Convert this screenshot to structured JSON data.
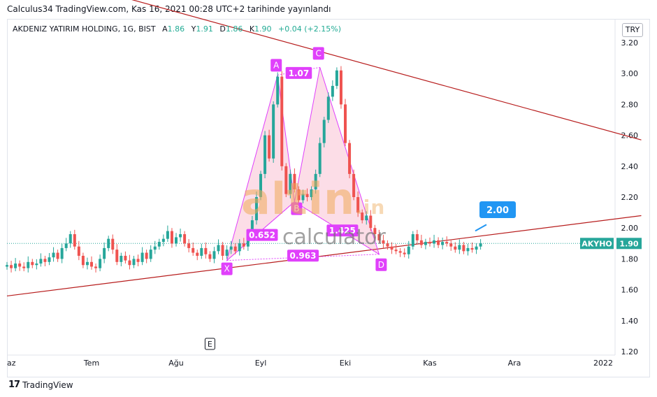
{
  "header": {
    "published": "Calculus34 TradingView.com, Kas 16, 2021 00:28 UTC+2 tarihinde yayınlandı"
  },
  "legend": {
    "symbol": "AKDENIZ YATIRIM HOLDING, 1G, BIST",
    "open_label": "A",
    "open": "1.86",
    "high_label": "Y",
    "high": "1.91",
    "low_label": "D",
    "low": "1.86",
    "close_label": "K",
    "close": "1.90",
    "change": "+0.04 (+2.15%)"
  },
  "currency": "TRY",
  "footer": {
    "brand": "TradingView"
  },
  "watermark": {
    "main": "altin",
    "suffix": ".in",
    "sub": "calculator"
  },
  "chart_data": {
    "type": "candlestick",
    "y_ticks": [
      "3.20",
      "3.00",
      "2.80",
      "2.60",
      "2.40",
      "2.20",
      "2.00",
      "1.80",
      "1.60",
      "1.40",
      "1.20"
    ],
    "ylim": [
      1.2,
      3.2
    ],
    "x_ticks": [
      {
        "label": "az",
        "idx": 0
      },
      {
        "label": "Tem",
        "idx": 20
      },
      {
        "label": "Ağu",
        "idx": 40
      },
      {
        "label": "Eyl",
        "idx": 60
      },
      {
        "label": "Eki",
        "idx": 80
      },
      {
        "label": "Kas",
        "idx": 100
      },
      {
        "label": "Ara",
        "idx": 120
      },
      {
        "label": "2022",
        "idx": 141
      }
    ],
    "closes": [
      1.76,
      1.74,
      1.77,
      1.75,
      1.74,
      1.78,
      1.76,
      1.77,
      1.8,
      1.78,
      1.81,
      1.84,
      1.8,
      1.87,
      1.9,
      1.96,
      1.88,
      1.82,
      1.76,
      1.78,
      1.75,
      1.74,
      1.8,
      1.87,
      1.93,
      1.86,
      1.78,
      1.82,
      1.79,
      1.76,
      1.8,
      1.78,
      1.84,
      1.8,
      1.86,
      1.88,
      1.91,
      1.93,
      1.98,
      1.9,
      1.94,
      1.96,
      1.9,
      1.87,
      1.84,
      1.82,
      1.87,
      1.83,
      1.8,
      1.85,
      1.89,
      1.82,
      1.86,
      1.88,
      1.85,
      1.9,
      1.88,
      1.94,
      2.05,
      2.2,
      2.35,
      2.6,
      2.45,
      2.8,
      2.98,
      2.4,
      2.22,
      2.35,
      2.25,
      2.18,
      2.22,
      2.2,
      2.25,
      2.35,
      2.55,
      2.7,
      2.85,
      2.92,
      3.02,
      2.8,
      2.55,
      2.35,
      2.2,
      2.1,
      2.05,
      2.08,
      2.0,
      1.96,
      1.92,
      1.9,
      1.88,
      1.86,
      1.85,
      1.84,
      1.83,
      1.88,
      1.96,
      1.92,
      1.89,
      1.91,
      1.9,
      1.92,
      1.89,
      1.91,
      1.9,
      1.88,
      1.86,
      1.89,
      1.85,
      1.87,
      1.86,
      1.88,
      1.9
    ],
    "harmonic_pattern": {
      "points": [
        {
          "label": "X",
          "idx": 52,
          "price": 1.79
        },
        {
          "label": "A",
          "idx": 64,
          "price": 2.99
        },
        {
          "label": "B",
          "idx": 68,
          "price": 2.17
        },
        {
          "label": "C",
          "idx": 74,
          "price": 3.04
        },
        {
          "label": "D",
          "idx": 88,
          "price": 1.83
        }
      ],
      "ratios": [
        {
          "label": "0.652"
        },
        {
          "label": "1.07"
        },
        {
          "label": "1.425"
        },
        {
          "label": "0.963"
        }
      ]
    },
    "trendlines": [
      {
        "name": "upper",
        "p1": {
          "idx": 20,
          "price": 3.55
        },
        "p2": {
          "idx": 150,
          "price": 2.57
        }
      },
      {
        "name": "lower",
        "p1": {
          "idx": 0,
          "price": 1.56
        },
        "p2": {
          "idx": 150,
          "price": 2.08
        }
      }
    ],
    "target": {
      "label": "2.00"
    },
    "price_tag": {
      "symbol": "AKYHO",
      "value": "1.90"
    },
    "event_marker": {
      "label": "E",
      "idx": 48
    },
    "colors": {
      "up": "#26a69a",
      "down": "#ef5350",
      "pattern": "#e040fb",
      "trendline": "#b71c1c",
      "target": "#2196f3",
      "price_tag": "#26a69a"
    }
  }
}
